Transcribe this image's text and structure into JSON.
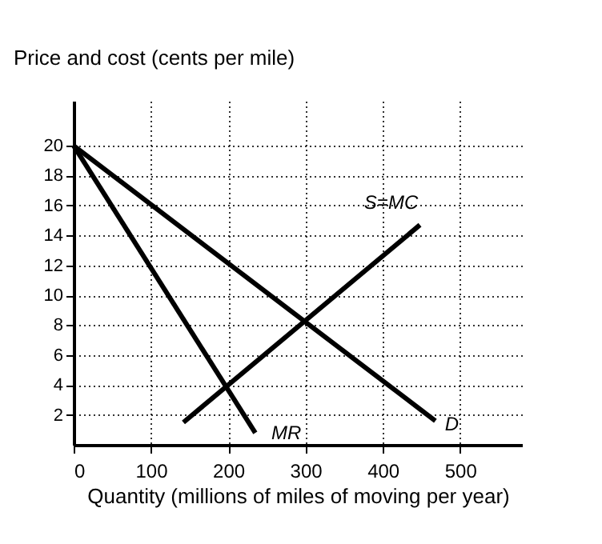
{
  "chart_data": {
    "type": "line",
    "ylabel": "Price and cost (cents per mile)",
    "xlabel": "Quantity (millions of miles of moving per year)",
    "xlim": [
      0,
      580
    ],
    "ylim": [
      0,
      23
    ],
    "xticks": [
      0,
      100,
      200,
      300,
      400,
      500
    ],
    "yticks": [
      2,
      4,
      6,
      8,
      10,
      12,
      14,
      16,
      18,
      20
    ],
    "series": [
      {
        "name": "D",
        "color": "#000000",
        "x": [
          0,
          468
        ],
        "values": [
          20,
          1.6
        ]
      },
      {
        "name": "MR",
        "color": "#000000",
        "x": [
          0,
          235
        ],
        "values": [
          20,
          0.8
        ]
      },
      {
        "name": "S=MC",
        "color": "#000000",
        "x": [
          142,
          448
        ],
        "values": [
          1.5,
          14.7
        ]
      }
    ],
    "grid": true,
    "legend": false,
    "marker": "none",
    "line_style": "solid"
  }
}
